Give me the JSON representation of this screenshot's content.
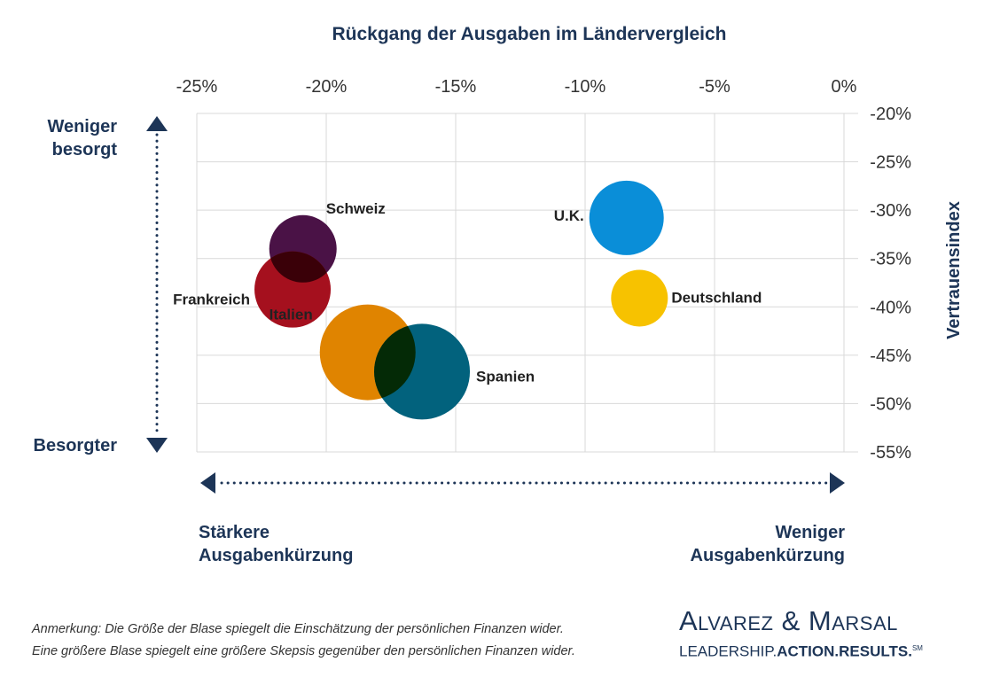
{
  "chart_data": {
    "type": "scatter",
    "title": "Rückgang der Ausgaben im Ländervergleich",
    "xlabel": "",
    "ylabel": "Vertrauensindex",
    "xlim": [
      -25,
      0
    ],
    "ylim": [
      -55,
      -20
    ],
    "x_ticks": [
      -25,
      -20,
      -15,
      -10,
      -5,
      0
    ],
    "x_tick_labels": [
      "-25%",
      "-20%",
      "-15%",
      "-10%",
      "-5%",
      "0%"
    ],
    "y_ticks": [
      -20,
      -25,
      -30,
      -35,
      -40,
      -45,
      -50,
      -55
    ],
    "y_tick_labels": [
      "-20%",
      "-25%",
      "-30%",
      "-35%",
      "-40%",
      "-45%",
      "-50%",
      "-55%"
    ],
    "x_axis_position": "top",
    "y_axis_position": "right",
    "grid": true,
    "bubble_size_meaning": "relative",
    "points": [
      {
        "label": "Schweiz",
        "x": -20.9,
        "y": -34.0,
        "size": 38,
        "color": "#4a1246"
      },
      {
        "label": "Frankreich",
        "x": -21.3,
        "y": -38.2,
        "size": 43,
        "color": "#a5101e"
      },
      {
        "label": "Italien",
        "x": -18.4,
        "y": -44.7,
        "size": 54,
        "color": "#e08400"
      },
      {
        "label": "Spanien",
        "x": -16.3,
        "y": -46.7,
        "size": 54,
        "color": "#02627d"
      },
      {
        "label": "U.K.",
        "x": -8.4,
        "y": -30.8,
        "size": 42,
        "color": "#0a8ed8"
      },
      {
        "label": "Deutschland",
        "x": -7.9,
        "y": -39.1,
        "size": 32,
        "color": "#f7c200"
      }
    ],
    "direction_labels": {
      "top_left": "Weniger besorgt",
      "bottom_left": "Besorgter",
      "left": "Stärkere Ausgabenkürzung",
      "right": "Weniger Ausgabenkürzung"
    }
  },
  "labels": {
    "y_top_line1": "Weniger",
    "y_top_line2": "besorgt",
    "y_bottom": "Besorgter",
    "x_left_line1": "Stärkere",
    "x_left_line2": "Ausgabenkürzung",
    "x_right_line1": "Weniger",
    "x_right_line2": "Ausgabenkürzung"
  },
  "note": {
    "line1": "Anmerkung: Die Größe der Blase spiegelt die Einschätzung der persönlichen Finanzen wider.",
    "line2": "Eine größere Blase spiegelt eine größere Skepsis gegenüber den persönlichen Finanzen wider."
  },
  "logo": {
    "name": "Alvarez & Marsal",
    "tag_part1": "LEADERSHIP.",
    "tag_part2": "ACTION.",
    "tag_part3": "RESULTS.",
    "tag_mark": "SM"
  },
  "colors": {
    "navy": "#1d3557",
    "grid": "#d9d9d9"
  }
}
